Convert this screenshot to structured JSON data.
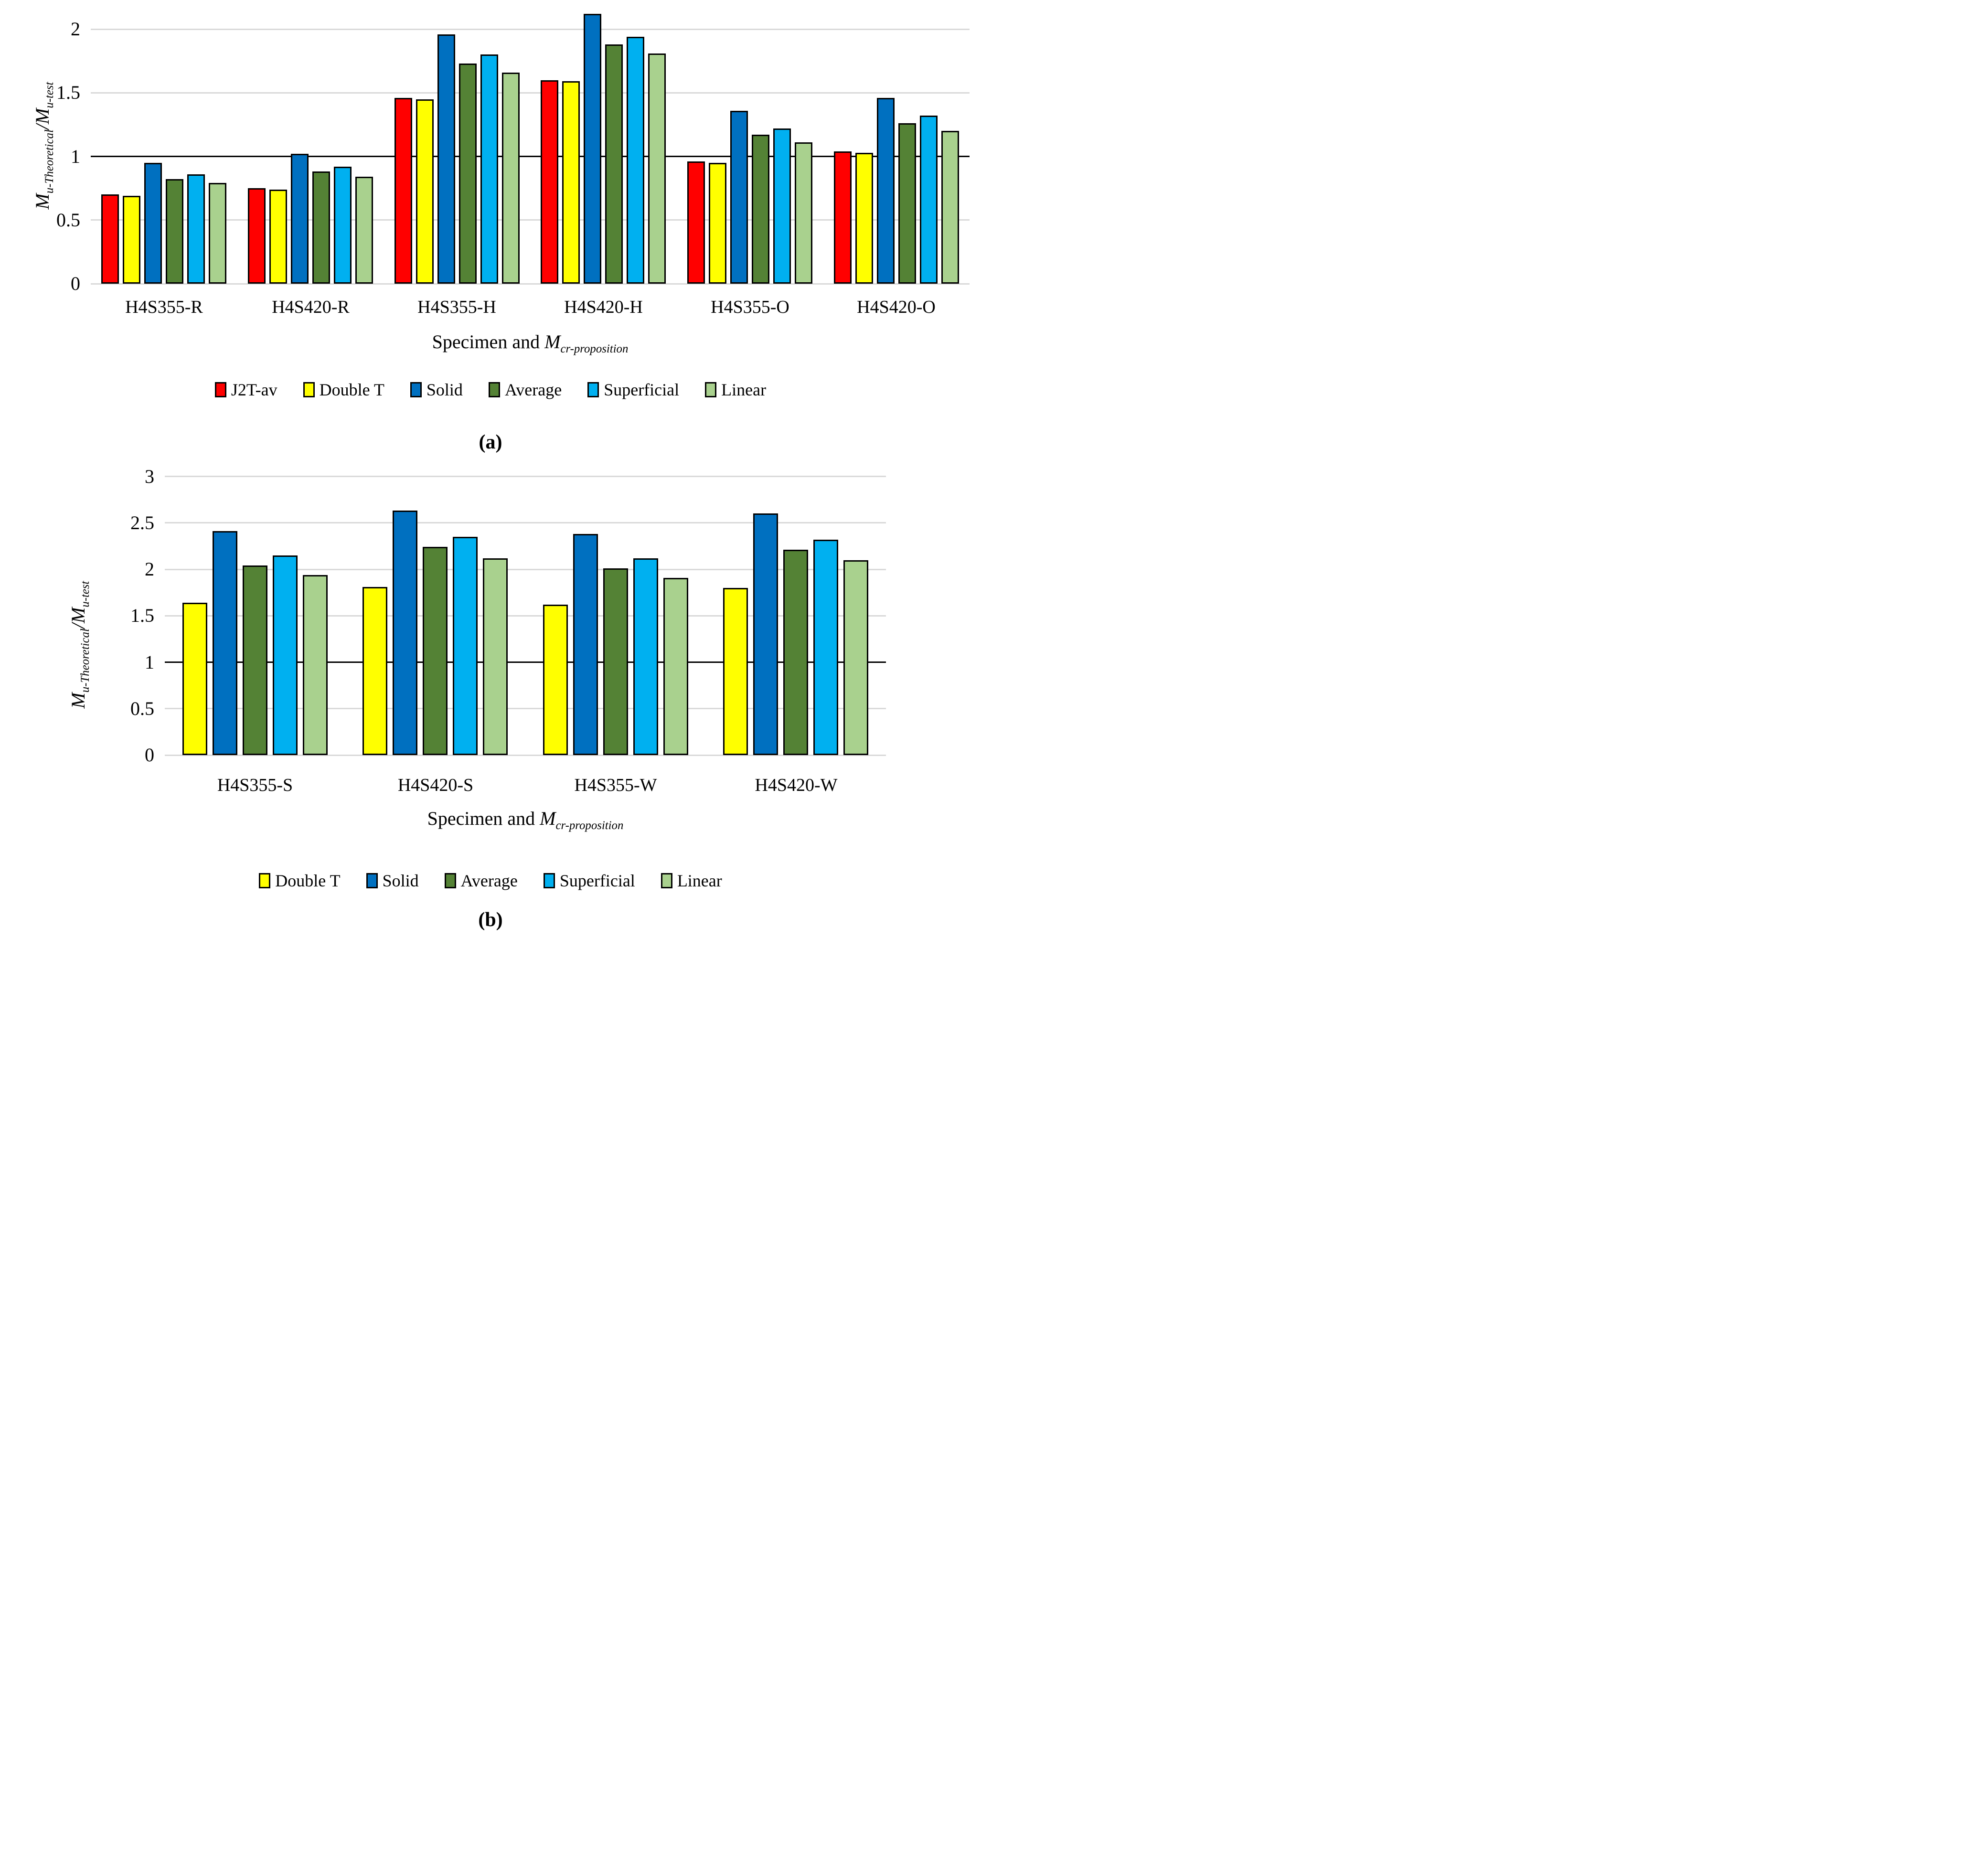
{
  "figure": {
    "captions": {
      "a": "(a)",
      "b": "(b)"
    },
    "y_axis_title": {
      "m1": "M",
      "sub1": "u-Theoretical",
      "m2": "/M",
      "sub2": "u-test"
    },
    "x_axis_title": {
      "prefix": "Specimen and ",
      "m": "M",
      "sub": "cr-proposition"
    }
  },
  "colors": {
    "red": "#FF0000",
    "yellow": "#FFFF00",
    "blue": "#0070C0",
    "dark_green": "#548235",
    "light_blue": "#00B0F0",
    "light_green": "#A9D18E",
    "gridline": "#D9D9D9",
    "reference_line": "#000000",
    "bar_border": "#000000"
  },
  "chart_data": [
    {
      "id": "a",
      "type": "bar",
      "title": "",
      "xlabel": "Specimen and Mcr-proposition",
      "ylabel": "Mu-Theoretical/Mu-test",
      "categories": [
        "H4S355-R",
        "H4S420-R",
        "H4S355-H",
        "H4S420-H",
        "H4S355-O",
        "H4S420-O"
      ],
      "series": [
        {
          "name": "J2T-av",
          "color": "#FF0000",
          "values": [
            0.7,
            0.75,
            1.46,
            1.6,
            0.96,
            1.04
          ]
        },
        {
          "name": "Double T",
          "color": "#FFFF00",
          "values": [
            0.69,
            0.74,
            1.45,
            1.59,
            0.95,
            1.03
          ]
        },
        {
          "name": "Solid",
          "color": "#0070C0",
          "values": [
            0.95,
            1.02,
            1.96,
            2.12,
            1.36,
            1.46
          ]
        },
        {
          "name": "Average",
          "color": "#548235",
          "values": [
            0.82,
            0.88,
            1.73,
            1.88,
            1.17,
            1.26
          ]
        },
        {
          "name": "Superficial",
          "color": "#00B0F0",
          "values": [
            0.86,
            0.92,
            1.8,
            1.94,
            1.22,
            1.32
          ]
        },
        {
          "name": "Linear",
          "color": "#A9D18E",
          "values": [
            0.79,
            0.84,
            1.66,
            1.81,
            1.11,
            1.2
          ]
        }
      ],
      "ylim": [
        0,
        2
      ],
      "yticks": [
        0,
        0.5,
        1,
        1.5,
        2
      ],
      "ytick_labels": [
        "0",
        "0.5",
        "1",
        "1.5",
        "2"
      ],
      "reference_line": 1,
      "grid": true,
      "legend_position": "bottom"
    },
    {
      "id": "b",
      "type": "bar",
      "title": "",
      "xlabel": "Specimen and Mcr-proposition",
      "ylabel": "Mu-Theoretical/Mu-test",
      "categories": [
        "H4S355-S",
        "H4S420-S",
        "H4S355-W",
        "H4S420-W"
      ],
      "series": [
        {
          "name": "Double T",
          "color": "#FFFF00",
          "values": [
            1.64,
            1.81,
            1.62,
            1.8
          ]
        },
        {
          "name": "Solid",
          "color": "#0070C0",
          "values": [
            2.41,
            2.63,
            2.38,
            2.6
          ]
        },
        {
          "name": "Average",
          "color": "#548235",
          "values": [
            2.04,
            2.24,
            2.01,
            2.21
          ]
        },
        {
          "name": "Superficial",
          "color": "#00B0F0",
          "values": [
            2.15,
            2.35,
            2.12,
            2.32
          ]
        },
        {
          "name": "Linear",
          "color": "#A9D18E",
          "values": [
            1.94,
            2.12,
            1.91,
            2.1
          ]
        }
      ],
      "ylim": [
        0,
        3
      ],
      "yticks": [
        0,
        0.5,
        1,
        1.5,
        2,
        2.5,
        3
      ],
      "ytick_labels": [
        "0",
        "0.5",
        "1",
        "1.5",
        "2",
        "2.5",
        "3"
      ],
      "reference_line": 1,
      "grid": true,
      "legend_position": "bottom"
    }
  ]
}
